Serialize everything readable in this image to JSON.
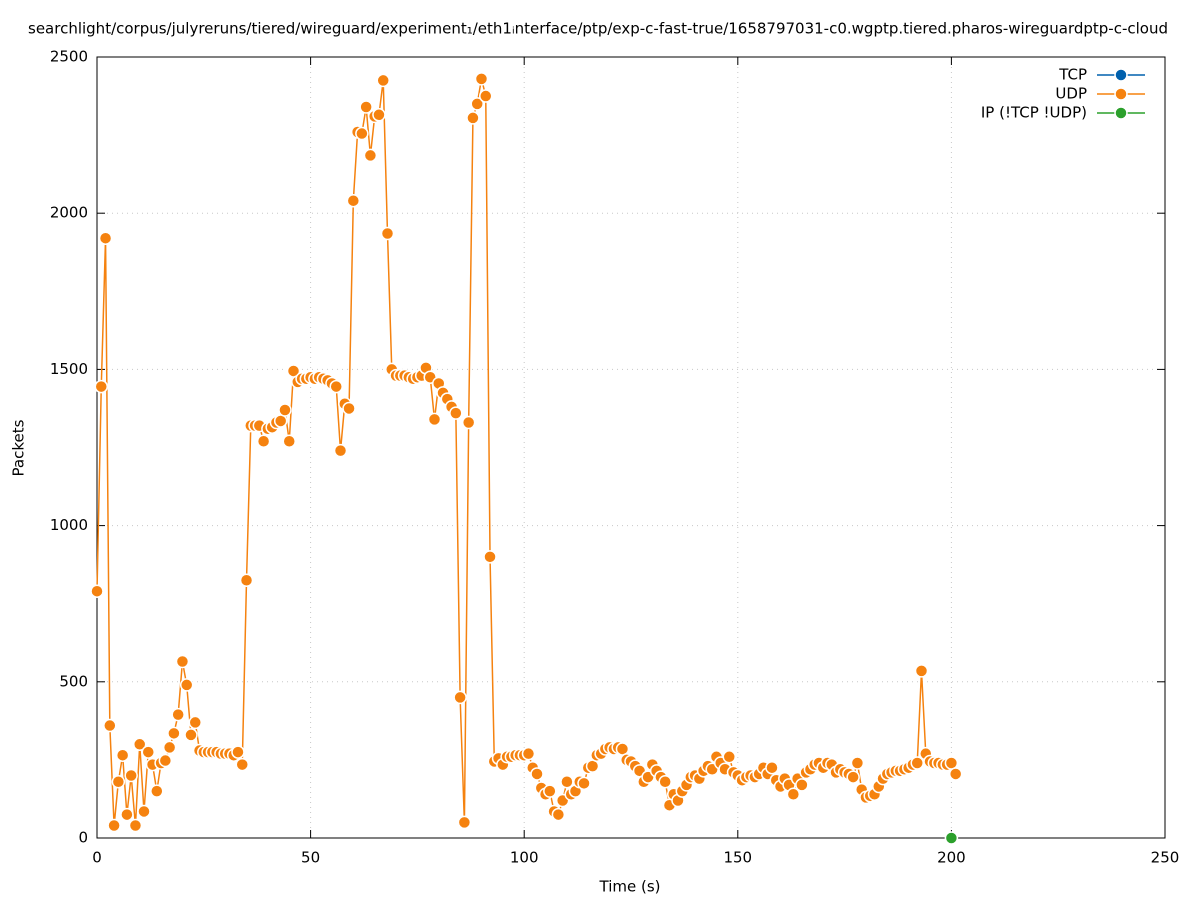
{
  "chart_data": {
    "type": "line",
    "title": "searchlight/corpus/julyreruns/tiered/wireguard/experiment₁/eth1ᵢnterface/ptp/exp-c-fast-true/1658797031-c0.wgptp.tiered.pharos-wireguardptp-c-cloud",
    "x_label": "Time (s)",
    "y_label": "Packets",
    "xlim": [
      0,
      250
    ],
    "ylim": [
      0,
      2500
    ],
    "xticks": [
      0,
      50,
      100,
      150,
      200,
      250
    ],
    "yticks": [
      0,
      500,
      1000,
      1500,
      2000,
      2500
    ],
    "grid": true,
    "legend": "top-right",
    "series": [
      {
        "name": "TCP",
        "color": "#0060ad",
        "x": [],
        "values": []
      },
      {
        "name": "UDP",
        "color": "#f5820f",
        "x": [
          0,
          1,
          2,
          3,
          4,
          5,
          6,
          7,
          8,
          9,
          10,
          11,
          12,
          13,
          14,
          15,
          16,
          17,
          18,
          19,
          20,
          21,
          22,
          23,
          24,
          25,
          26,
          27,
          28,
          29,
          30,
          31,
          32,
          33,
          34,
          35,
          36,
          37,
          38,
          39,
          40,
          41,
          42,
          43,
          44,
          45,
          46,
          47,
          48,
          49,
          50,
          51,
          52,
          53,
          54,
          55,
          56,
          57,
          58,
          59,
          60,
          61,
          62,
          63,
          64,
          65,
          66,
          67,
          68,
          69,
          70,
          71,
          72,
          73,
          74,
          75,
          76,
          77,
          78,
          79,
          80,
          81,
          82,
          83,
          84,
          85,
          86,
          87,
          88,
          89,
          90,
          91,
          92,
          93,
          94,
          95,
          96,
          97,
          98,
          99,
          100,
          101,
          102,
          103,
          104,
          105,
          106,
          107,
          108,
          109,
          110,
          111,
          112,
          113,
          114,
          115,
          116,
          117,
          118,
          119,
          120,
          121,
          122,
          123,
          124,
          125,
          126,
          127,
          128,
          129,
          130,
          131,
          132,
          133,
          134,
          135,
          136,
          137,
          138,
          139,
          140,
          141,
          142,
          143,
          144,
          145,
          146,
          147,
          148,
          149,
          150,
          151,
          152,
          153,
          154,
          155,
          156,
          157,
          158,
          159,
          160,
          161,
          162,
          163,
          164,
          165,
          166,
          167,
          168,
          169,
          170,
          171,
          172,
          173,
          174,
          175,
          176,
          177,
          178,
          179,
          180,
          181,
          182,
          183,
          184,
          185,
          186,
          187,
          188,
          189,
          190,
          191,
          192,
          193,
          194,
          195,
          196,
          197,
          198,
          199,
          200,
          201
        ],
        "values": [
          790,
          1445,
          1920,
          360,
          40,
          180,
          265,
          75,
          200,
          40,
          300,
          85,
          275,
          235,
          150,
          240,
          248,
          290,
          335,
          395,
          565,
          490,
          330,
          370,
          280,
          275,
          275,
          275,
          275,
          270,
          270,
          270,
          265,
          275,
          235,
          825,
          1320,
          1320,
          1320,
          1270,
          1310,
          1315,
          1330,
          1335,
          1370,
          1270,
          1495,
          1460,
          1470,
          1470,
          1475,
          1470,
          1475,
          1470,
          1465,
          1455,
          1445,
          1240,
          1390,
          1375,
          2040,
          2260,
          2255,
          2340,
          2185,
          2310,
          2315,
          2425,
          1935,
          1500,
          1480,
          1480,
          1480,
          1475,
          1470,
          1475,
          1480,
          1505,
          1475,
          1340,
          1455,
          1425,
          1405,
          1380,
          1360,
          450,
          50,
          1330,
          2305,
          2350,
          2430,
          2375,
          900,
          245,
          255,
          235,
          260,
          260,
          265,
          265,
          265,
          270,
          225,
          205,
          160,
          140,
          150,
          85,
          75,
          120,
          180,
          140,
          150,
          180,
          175,
          225,
          230,
          265,
          270,
          285,
          290,
          285,
          290,
          285,
          250,
          245,
          230,
          215,
          180,
          195,
          235,
          215,
          195,
          180,
          105,
          140,
          120,
          150,
          170,
          195,
          200,
          190,
          215,
          230,
          220,
          260,
          240,
          220,
          260,
          210,
          200,
          185,
          195,
          200,
          195,
          205,
          225,
          205,
          225,
          185,
          165,
          190,
          170,
          140,
          190,
          170,
          210,
          220,
          235,
          240,
          225,
          240,
          235,
          210,
          220,
          210,
          205,
          195,
          240,
          155,
          130,
          135,
          140,
          165,
          190,
          205,
          210,
          215,
          215,
          220,
          225,
          235,
          240,
          535,
          270,
          245,
          240,
          240,
          235,
          235,
          240,
          205
        ]
      },
      {
        "name": "IP (!TCP  !UDP)",
        "color": "#2ca02c",
        "x": [
          200
        ],
        "values": [
          0
        ]
      }
    ]
  }
}
